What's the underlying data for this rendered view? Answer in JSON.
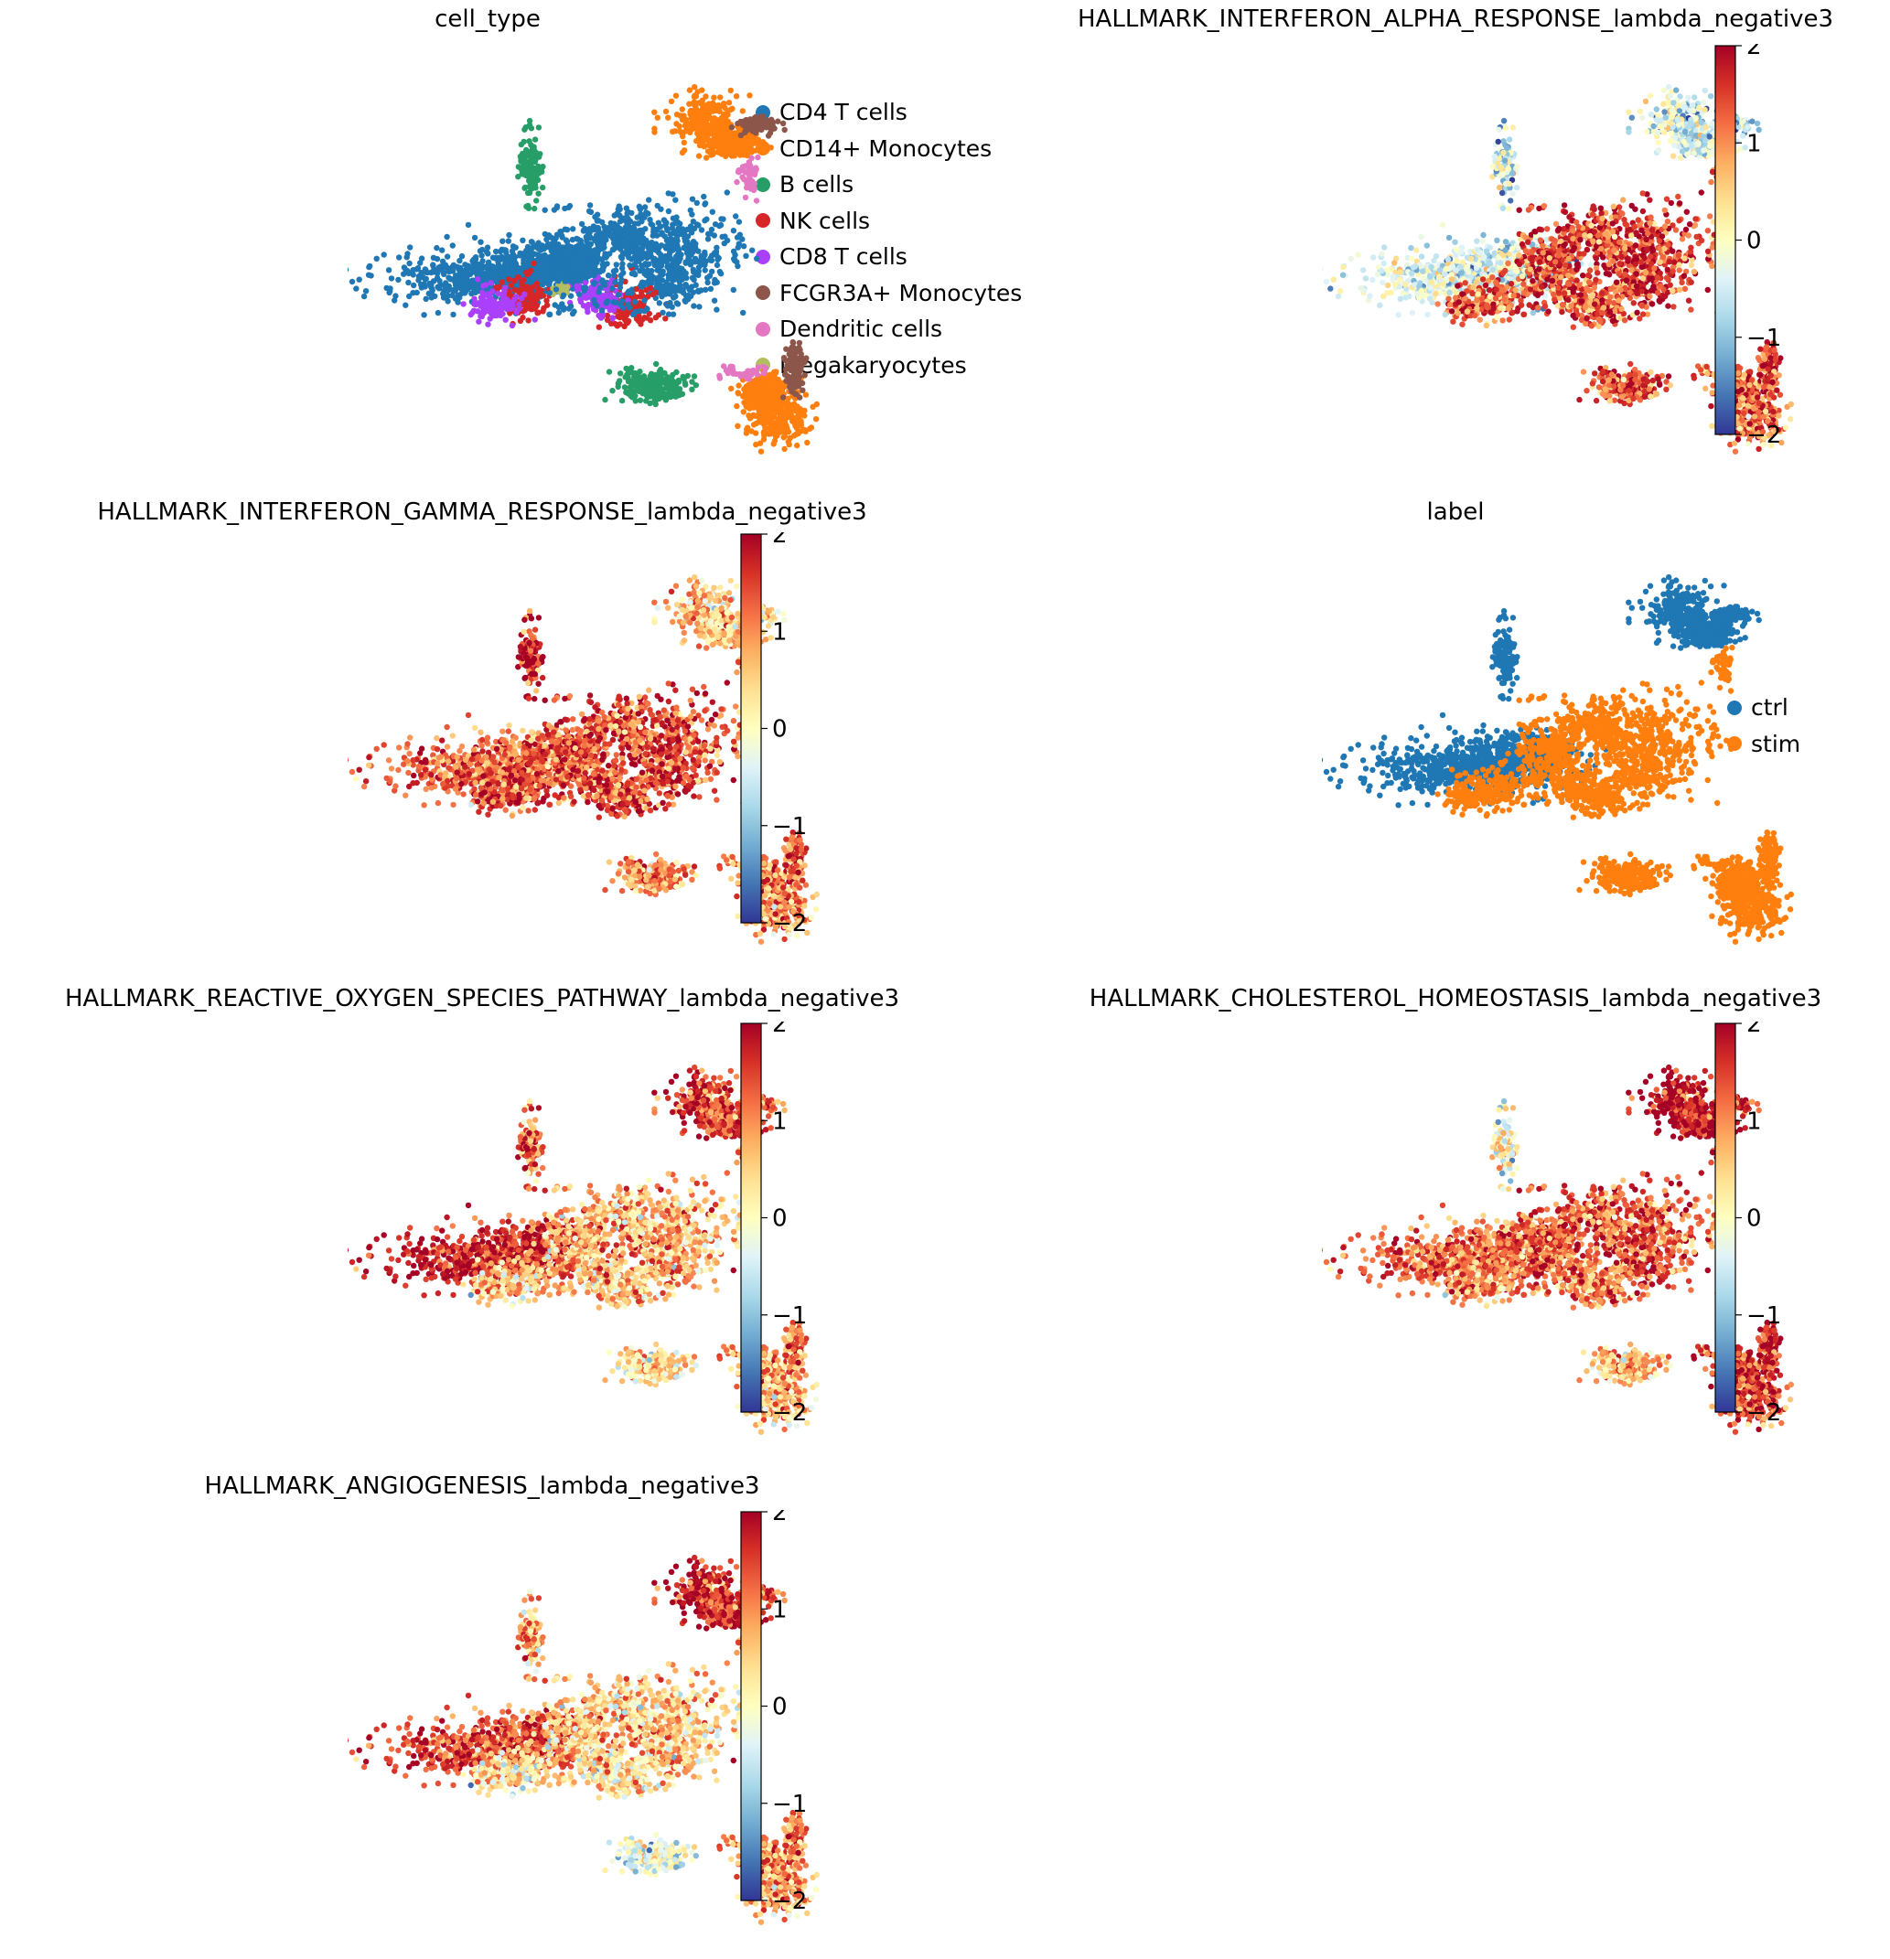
{
  "colorbar": {
    "ticks": [
      "2",
      "1",
      "0",
      "−1",
      "−2"
    ],
    "min": -2,
    "max": 2,
    "colormap": "RdYlBu_r",
    "stops": [
      "#313695",
      "#4575b4",
      "#74add1",
      "#abd9e9",
      "#e0f3f8",
      "#ffffbf",
      "#fee090",
      "#fdae61",
      "#f46d43",
      "#d73027",
      "#a50026"
    ]
  },
  "chart_data": [
    {
      "type": "scatter",
      "title": "cell_type",
      "color_mode": "categorical",
      "legend": {
        "placement": "right",
        "entries": [
          {
            "label": "CD4 T cells",
            "color": "#1f77b4"
          },
          {
            "label": "CD14+ Monocytes",
            "color": "#ff7f0e"
          },
          {
            "label": "B cells",
            "color": "#279e68"
          },
          {
            "label": "NK cells",
            "color": "#d62728"
          },
          {
            "label": "CD8 T cells",
            "color": "#aa40fc"
          },
          {
            "label": "FCGR3A+ Monocytes",
            "color": "#8c564b"
          },
          {
            "label": "Dendritic cells",
            "color": "#e377c2"
          },
          {
            "label": "Megakaryocytes",
            "color": "#b5bd61"
          }
        ]
      }
    },
    {
      "type": "scatter",
      "title": "HALLMARK_INTERFERON_ALPHA_RESPONSE_lambda_negative3",
      "color_mode": "continuous",
      "color_range": [
        -2,
        2
      ],
      "cluster_levels": {
        "cd4_left": -0.4,
        "cd4_right": 1.5,
        "nk_cd8": 1.3,
        "b_cells": 1.4,
        "b_cells_upper": -0.5,
        "cd14_mono": 1.2,
        "cd14_mono_upper": -0.5,
        "fcgr3a_mono": 1.4,
        "dendritic": 1.2
      }
    },
    {
      "type": "scatter",
      "title": "HALLMARK_INTERFERON_GAMMA_RESPONSE_lambda_negative3",
      "color_mode": "continuous",
      "color_range": [
        -2,
        2
      ],
      "cluster_levels": {
        "cd4_left": 1.2,
        "cd4_right": 1.4,
        "nk_cd8": 1.5,
        "b_cells": 1.0,
        "b_cells_upper": 1.8,
        "cd14_mono": 1.0,
        "cd14_mono_upper": 0.5,
        "fcgr3a_mono": 1.2,
        "dendritic": 1.0
      }
    },
    {
      "type": "scatter",
      "title": "label",
      "color_mode": "categorical",
      "legend": {
        "placement": "right",
        "entries": [
          {
            "label": "ctrl",
            "color": "#1f77b4"
          },
          {
            "label": "stim",
            "color": "#ff7f0e"
          }
        ]
      }
    },
    {
      "type": "scatter",
      "title": "HALLMARK_REACTIVE_OXYGEN_SPECIES_PATHWAY_lambda_negative3",
      "color_mode": "continuous",
      "color_range": [
        -2,
        2
      ],
      "cluster_levels": {
        "cd4_left": 1.7,
        "cd4_right": 0.7,
        "nk_cd8": 0.6,
        "b_cells": 0.4,
        "b_cells_upper": 1.2,
        "cd14_mono": 0.7,
        "cd14_mono_upper": 1.4,
        "fcgr3a_mono": 1.0,
        "dendritic": 1.0
      }
    },
    {
      "type": "scatter",
      "title": "HALLMARK_CHOLESTEROL_HOMEOSTASIS_lambda_negative3",
      "color_mode": "continuous",
      "color_range": [
        -2,
        2
      ],
      "cluster_levels": {
        "cd4_left": 1.2,
        "cd4_right": 1.3,
        "nk_cd8": 1.0,
        "b_cells": 0.7,
        "b_cells_upper": 0.0,
        "cd14_mono": 1.5,
        "cd14_mono_upper": 1.8,
        "fcgr3a_mono": 1.6,
        "dendritic": 1.5
      }
    },
    {
      "type": "scatter",
      "title": "HALLMARK_ANGIOGENESIS_lambda_negative3",
      "color_mode": "continuous",
      "color_range": [
        -2,
        2
      ],
      "cluster_levels": {
        "cd4_left": 1.4,
        "cd4_right": 0.5,
        "nk_cd8": 0.3,
        "b_cells": -0.2,
        "b_cells_upper": 0.8,
        "cd14_mono": 0.9,
        "cd14_mono_upper": 1.6,
        "fcgr3a_mono": 1.0,
        "dendritic": 1.0
      }
    }
  ]
}
